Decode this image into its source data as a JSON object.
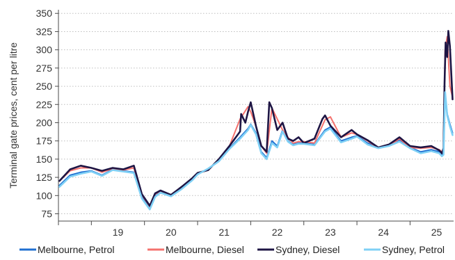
{
  "chart_data": {
    "type": "line",
    "title": "",
    "xlabel": "",
    "ylabel": "Terminal gate prices, cent per litre",
    "ylim": [
      65,
      355
    ],
    "yticks": [
      75,
      100,
      125,
      150,
      175,
      200,
      225,
      250,
      275,
      300,
      325,
      350
    ],
    "xlim": [
      2018.38,
      2025.82
    ],
    "xticks": [
      {
        "label": "19",
        "center": 2019.5
      },
      {
        "label": "20",
        "center": 2020.5
      },
      {
        "label": "21",
        "center": 2021.5
      },
      {
        "label": "22",
        "center": 2022.5
      },
      {
        "label": "23",
        "center": 2023.5
      },
      {
        "label": "24",
        "center": 2024.5
      },
      {
        "label": "25",
        "center": 2025.5
      }
    ],
    "grid": true,
    "legend_position": "bottom",
    "series": [
      {
        "name": "Melbourne, Petrol",
        "color": "#1f6fd1",
        "x": [
          2018.4,
          2018.6,
          2018.8,
          2019.0,
          2019.2,
          2019.4,
          2019.6,
          2019.8,
          2019.95,
          2020.1,
          2020.2,
          2020.3,
          2020.5,
          2020.7,
          2020.9,
          2021.0,
          2021.2,
          2021.4,
          2021.6,
          2021.8,
          2021.95,
          2022.0,
          2022.1,
          2022.2,
          2022.3,
          2022.4,
          2022.5,
          2022.6,
          2022.7,
          2022.8,
          2022.9,
          2023.0,
          2023.2,
          2023.4,
          2023.5,
          2023.7,
          2023.9,
          2024.0,
          2024.2,
          2024.4,
          2024.6,
          2024.8,
          2025.0,
          2025.2,
          2025.4,
          2025.55,
          2025.6,
          2025.63,
          2025.66,
          2025.7,
          2025.75,
          2025.8
        ],
        "y": [
          114,
          128,
          132,
          134,
          128,
          136,
          134,
          132,
          98,
          83,
          99,
          105,
          100,
          110,
          122,
          130,
          136,
          148,
          165,
          180,
          192,
          198,
          186,
          160,
          152,
          175,
          168,
          190,
          175,
          170,
          172,
          172,
          170,
          190,
          194,
          175,
          180,
          182,
          172,
          166,
          170,
          176,
          166,
          160,
          163,
          160,
          156,
          158,
          240,
          212,
          198,
          186
        ]
      },
      {
        "name": "Melbourne, Diesel",
        "color": "#f4726e",
        "x": [
          2018.4,
          2018.6,
          2018.8,
          2019.0,
          2019.2,
          2019.4,
          2019.6,
          2019.8,
          2019.95,
          2020.1,
          2020.2,
          2020.3,
          2020.5,
          2020.7,
          2020.9,
          2021.0,
          2021.2,
          2021.4,
          2021.6,
          2021.8,
          2021.95,
          2022.0,
          2022.1,
          2022.2,
          2022.3,
          2022.4,
          2022.5,
          2022.6,
          2022.7,
          2022.8,
          2022.9,
          2023.0,
          2023.2,
          2023.4,
          2023.5,
          2023.7,
          2023.9,
          2024.0,
          2024.2,
          2024.4,
          2024.6,
          2024.8,
          2025.0,
          2025.2,
          2025.4,
          2025.55,
          2025.6,
          2025.63,
          2025.66,
          2025.7,
          2025.75,
          2025.8
        ],
        "y": [
          120,
          134,
          138,
          138,
          132,
          137,
          135,
          138,
          101,
          85,
          102,
          106,
          100,
          111,
          123,
          130,
          135,
          149,
          168,
          205,
          222,
          215,
          195,
          168,
          158,
          220,
          205,
          190,
          180,
          172,
          174,
          174,
          172,
          204,
          208,
          180,
          186,
          184,
          175,
          165,
          168,
          178,
          166,
          165,
          166,
          163,
          160,
          162,
          300,
          318,
          250,
          235
        ]
      },
      {
        "name": "Sydney, Diesel",
        "color": "#1e1544",
        "x": [
          2018.4,
          2018.6,
          2018.8,
          2019.0,
          2019.2,
          2019.4,
          2019.6,
          2019.8,
          2019.95,
          2020.1,
          2020.2,
          2020.3,
          2020.5,
          2020.7,
          2020.9,
          2021.0,
          2021.2,
          2021.4,
          2021.6,
          2021.8,
          2021.82,
          2021.9,
          2021.95,
          2022.0,
          2022.1,
          2022.2,
          2022.3,
          2022.35,
          2022.4,
          2022.5,
          2022.6,
          2022.7,
          2022.8,
          2022.9,
          2023.0,
          2023.2,
          2023.35,
          2023.4,
          2023.5,
          2023.7,
          2023.9,
          2024.0,
          2024.2,
          2024.4,
          2024.6,
          2024.8,
          2025.0,
          2025.2,
          2025.4,
          2025.55,
          2025.6,
          2025.63,
          2025.65,
          2025.67,
          2025.7,
          2025.72,
          2025.75,
          2025.8
        ],
        "y": [
          120,
          136,
          141,
          138,
          134,
          138,
          136,
          141,
          102,
          86,
          103,
          107,
          101,
          112,
          124,
          131,
          135,
          150,
          168,
          188,
          212,
          200,
          215,
          228,
          195,
          168,
          160,
          228,
          220,
          190,
          200,
          178,
          175,
          180,
          172,
          178,
          205,
          210,
          196,
          180,
          190,
          184,
          176,
          166,
          170,
          180,
          168,
          166,
          168,
          162,
          158,
          165,
          255,
          310,
          290,
          326,
          305,
          232
        ]
      },
      {
        "name": "Sydney, Petrol",
        "color": "#7fd0f5",
        "x": [
          2018.4,
          2018.6,
          2018.8,
          2019.0,
          2019.2,
          2019.4,
          2019.6,
          2019.8,
          2019.95,
          2020.1,
          2020.2,
          2020.3,
          2020.5,
          2020.7,
          2020.9,
          2021.0,
          2021.2,
          2021.4,
          2021.6,
          2021.8,
          2021.95,
          2022.0,
          2022.1,
          2022.2,
          2022.3,
          2022.4,
          2022.5,
          2022.6,
          2022.7,
          2022.8,
          2022.9,
          2023.0,
          2023.2,
          2023.4,
          2023.5,
          2023.7,
          2023.9,
          2024.0,
          2024.2,
          2024.4,
          2024.6,
          2024.8,
          2025.0,
          2025.2,
          2025.4,
          2025.55,
          2025.6,
          2025.63,
          2025.66,
          2025.7,
          2025.75,
          2025.8
        ],
        "y": [
          112,
          126,
          130,
          133,
          127,
          135,
          133,
          131,
          96,
          81,
          98,
          104,
          99,
          109,
          121,
          129,
          137,
          147,
          164,
          178,
          190,
          197,
          184,
          158,
          150,
          172,
          166,
          188,
          174,
          169,
          171,
          171,
          169,
          188,
          192,
          173,
          178,
          181,
          170,
          165,
          168,
          174,
          165,
          158,
          161,
          158,
          154,
          156,
          242,
          210,
          195,
          183
        ]
      }
    ]
  }
}
